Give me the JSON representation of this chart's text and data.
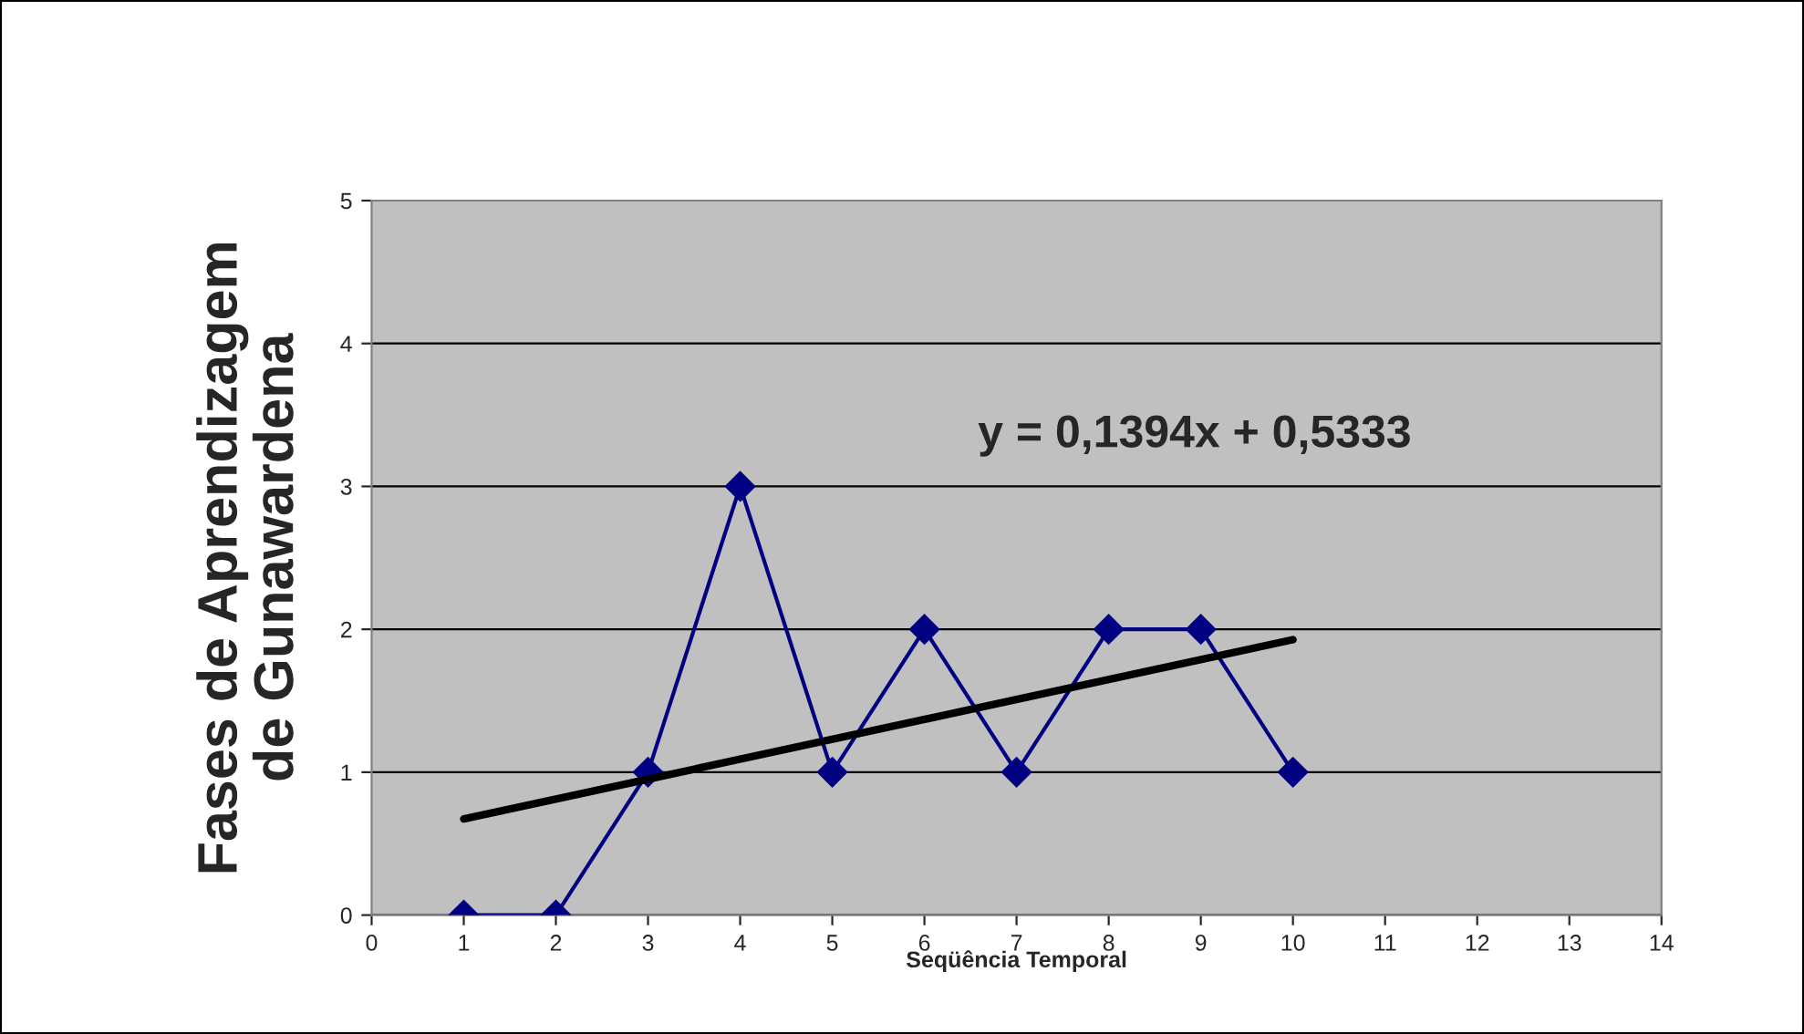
{
  "chart_data": {
    "type": "line",
    "xlabel": "Seqüência Temporal",
    "ylabel": "Fases de Aprendizagem\nde Gunawardena",
    "x": [
      1,
      2,
      3,
      4,
      5,
      6,
      7,
      8,
      9,
      10
    ],
    "series": [
      {
        "color": "#000080",
        "values": [
          0,
          0,
          1,
          3,
          1,
          2,
          1,
          2,
          2,
          1
        ],
        "marker": "diamond"
      },
      {
        "type": "line",
        "color": "#000000",
        "x": [
          1,
          10
        ],
        "values": [
          0.6727,
          1.9273
        ],
        "marker": "none"
      }
    ],
    "annotations": [
      "y = 0,1394x + 0,5333"
    ],
    "xlim": [
      0,
      14
    ],
    "xticks": [
      0,
      1,
      2,
      3,
      4,
      5,
      6,
      7,
      8,
      9,
      10,
      11,
      12,
      13,
      14
    ],
    "ylim": [
      0,
      5
    ],
    "yticks": [
      0,
      1,
      2,
      3,
      4,
      5
    ],
    "grid": "y",
    "legend": false
  }
}
